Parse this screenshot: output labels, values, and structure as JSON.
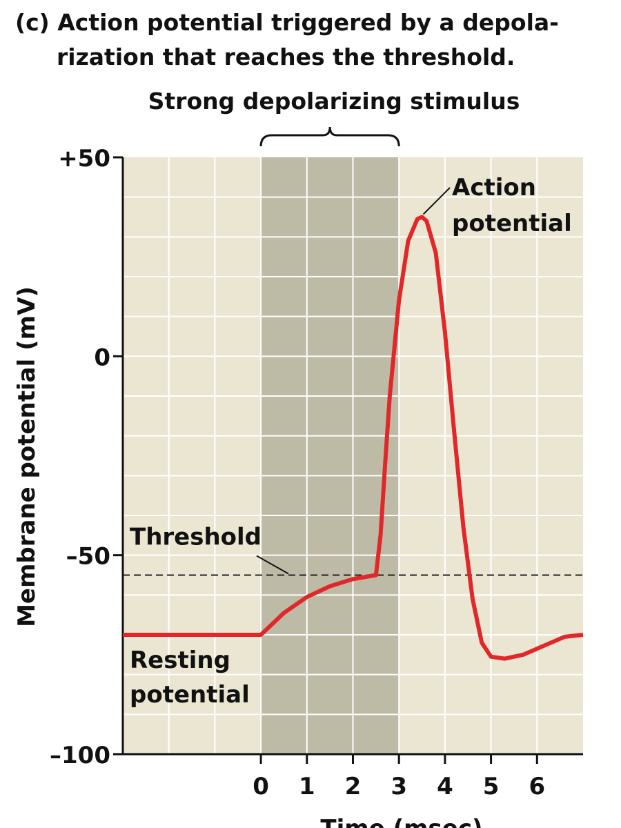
{
  "chart_data": {
    "type": "line",
    "title": [
      "(c) Action potential triggered by a depola-",
      "rization that reaches the threshold."
    ],
    "stimulus_label": "Strong depolarizing stimulus",
    "stimulus_range": [
      0,
      3
    ],
    "x_label": "Time (msec)",
    "y_label": "Membrane potential (mV)",
    "xlim": [
      -3,
      7
    ],
    "ylim": [
      -100,
      50
    ],
    "xticks": [
      0,
      1,
      2,
      3,
      4,
      5,
      6
    ],
    "yticks": [
      {
        "value": 50,
        "label": "+50"
      },
      0,
      {
        "value": -50,
        "label": "–50"
      },
      {
        "value": -100,
        "label": "–100"
      }
    ],
    "x_grid": [
      -2,
      -1,
      0,
      1,
      2,
      3,
      4,
      5,
      6
    ],
    "y_grid": [
      40,
      30,
      20,
      10,
      0,
      -10,
      -20,
      -30,
      -40,
      -50,
      -60,
      -70,
      -80,
      -90
    ],
    "threshold": -55,
    "threshold_label": "Threshold",
    "resting_label": [
      "Resting",
      "potential"
    ],
    "peak_label": [
      "Action",
      "potential"
    ],
    "series": [
      {
        "color": "#e0282b",
        "x": [
          -3,
          0,
          0.5,
          1,
          1.5,
          2,
          2.5,
          2.6,
          2.7,
          2.8,
          3,
          3.2,
          3.4,
          3.5,
          3.6,
          3.8,
          4,
          4.2,
          4.4,
          4.6,
          4.8,
          5,
          5.3,
          5.7,
          6.2,
          6.6,
          7
        ],
        "values": [
          -70,
          -70,
          -64.5,
          -60.5,
          -57.8,
          -56,
          -55,
          -45,
          -27,
          -10,
          14,
          29,
          34.5,
          35,
          34,
          26,
          6,
          -19,
          -43,
          -61,
          -72,
          -75.5,
          -76,
          -75,
          -72.5,
          -70.5,
          -70
        ]
      }
    ]
  }
}
